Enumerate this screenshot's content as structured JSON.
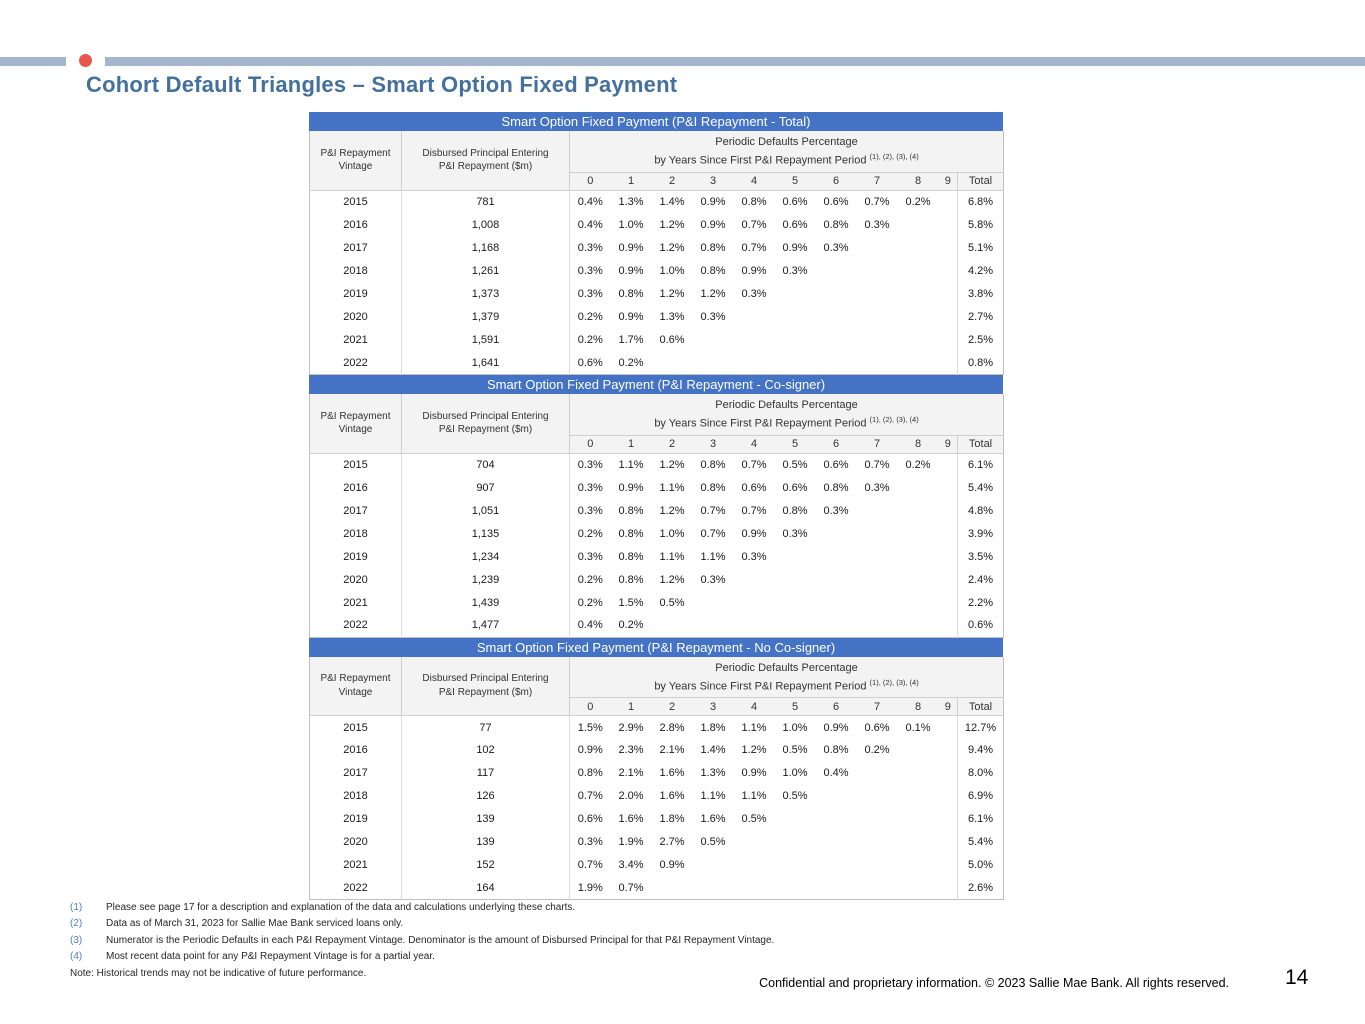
{
  "page": {
    "title": "Cohort Default Triangles – Smart Option Fixed Payment",
    "page_number": "14",
    "footer": "Confidential and proprietary information. © 2023 Sallie Mae Bank. All rights reserved.",
    "note": "Note: Historical trends may not be indicative of future performance.",
    "footnotes": [
      {
        "marker": "(1)",
        "text": "Please see page 17 for a description and explanation of the data and calculations underlying these charts."
      },
      {
        "marker": "(2)",
        "text": "Data as of March 31, 2023 for Sallie Mae Bank serviced loans only."
      },
      {
        "marker": "(3)",
        "text": "Numerator is the Periodic Defaults in each P&I Repayment Vintage. Denominator is the amount of Disbursed Principal for that P&I Repayment Vintage."
      },
      {
        "marker": "(4)",
        "text": "Most recent data point for any P&I Repayment Vintage is for a partial year."
      }
    ]
  },
  "colors": {
    "table_title_bg": "#4472C4",
    "accent_bar": "#A3B6CD",
    "red_dot": "#E8574E",
    "title_text": "#44709D"
  },
  "table_headers": {
    "vintage_line1": "P&I Repayment",
    "vintage_line2": "Vintage",
    "disbursed_line1": "Disbursed Principal Entering",
    "disbursed_line2": "P&I Repayment ($m)",
    "group_line1": "Periodic Defaults Percentage",
    "group_line2": "by Years Since First P&I Repayment Period",
    "group_superscript": "(1), (2), (3), (4)",
    "year_cols": [
      "0",
      "1",
      "2",
      "3",
      "4",
      "5",
      "6",
      "7",
      "8",
      "9"
    ],
    "total_label": "Total"
  },
  "tables": [
    {
      "title": "Smart Option Fixed Payment (P&I Repayment - Total)",
      "rows": [
        {
          "vintage": "2015",
          "disbursed": "781",
          "values": [
            "0.4%",
            "1.3%",
            "1.4%",
            "0.9%",
            "0.8%",
            "0.6%",
            "0.6%",
            "0.7%",
            "0.2%",
            ""
          ],
          "total": "6.8%"
        },
        {
          "vintage": "2016",
          "disbursed": "1,008",
          "values": [
            "0.4%",
            "1.0%",
            "1.2%",
            "0.9%",
            "0.7%",
            "0.6%",
            "0.8%",
            "0.3%",
            "",
            ""
          ],
          "total": "5.8%"
        },
        {
          "vintage": "2017",
          "disbursed": "1,168",
          "values": [
            "0.3%",
            "0.9%",
            "1.2%",
            "0.8%",
            "0.7%",
            "0.9%",
            "0.3%",
            "",
            "",
            ""
          ],
          "total": "5.1%"
        },
        {
          "vintage": "2018",
          "disbursed": "1,261",
          "values": [
            "0.3%",
            "0.9%",
            "1.0%",
            "0.8%",
            "0.9%",
            "0.3%",
            "",
            "",
            "",
            ""
          ],
          "total": "4.2%"
        },
        {
          "vintage": "2019",
          "disbursed": "1,373",
          "values": [
            "0.3%",
            "0.8%",
            "1.2%",
            "1.2%",
            "0.3%",
            "",
            "",
            "",
            "",
            ""
          ],
          "total": "3.8%"
        },
        {
          "vintage": "2020",
          "disbursed": "1,379",
          "values": [
            "0.2%",
            "0.9%",
            "1.3%",
            "0.3%",
            "",
            "",
            "",
            "",
            "",
            ""
          ],
          "total": "2.7%"
        },
        {
          "vintage": "2021",
          "disbursed": "1,591",
          "values": [
            "0.2%",
            "1.7%",
            "0.6%",
            "",
            "",
            "",
            "",
            "",
            "",
            ""
          ],
          "total": "2.5%"
        },
        {
          "vintage": "2022",
          "disbursed": "1,641",
          "values": [
            "0.6%",
            "0.2%",
            "",
            "",
            "",
            "",
            "",
            "",
            "",
            ""
          ],
          "total": "0.8%"
        }
      ]
    },
    {
      "title": "Smart Option Fixed Payment (P&I Repayment - Co-signer)",
      "rows": [
        {
          "vintage": "2015",
          "disbursed": "704",
          "values": [
            "0.3%",
            "1.1%",
            "1.2%",
            "0.8%",
            "0.7%",
            "0.5%",
            "0.6%",
            "0.7%",
            "0.2%",
            ""
          ],
          "total": "6.1%"
        },
        {
          "vintage": "2016",
          "disbursed": "907",
          "values": [
            "0.3%",
            "0.9%",
            "1.1%",
            "0.8%",
            "0.6%",
            "0.6%",
            "0.8%",
            "0.3%",
            "",
            ""
          ],
          "total": "5.4%"
        },
        {
          "vintage": "2017",
          "disbursed": "1,051",
          "values": [
            "0.3%",
            "0.8%",
            "1.2%",
            "0.7%",
            "0.7%",
            "0.8%",
            "0.3%",
            "",
            "",
            ""
          ],
          "total": "4.8%"
        },
        {
          "vintage": "2018",
          "disbursed": "1,135",
          "values": [
            "0.2%",
            "0.8%",
            "1.0%",
            "0.7%",
            "0.9%",
            "0.3%",
            "",
            "",
            "",
            ""
          ],
          "total": "3.9%"
        },
        {
          "vintage": "2019",
          "disbursed": "1,234",
          "values": [
            "0.3%",
            "0.8%",
            "1.1%",
            "1.1%",
            "0.3%",
            "",
            "",
            "",
            "",
            ""
          ],
          "total": "3.5%"
        },
        {
          "vintage": "2020",
          "disbursed": "1,239",
          "values": [
            "0.2%",
            "0.8%",
            "1.2%",
            "0.3%",
            "",
            "",
            "",
            "",
            "",
            ""
          ],
          "total": "2.4%"
        },
        {
          "vintage": "2021",
          "disbursed": "1,439",
          "values": [
            "0.2%",
            "1.5%",
            "0.5%",
            "",
            "",
            "",
            "",
            "",
            "",
            ""
          ],
          "total": "2.2%"
        },
        {
          "vintage": "2022",
          "disbursed": "1,477",
          "values": [
            "0.4%",
            "0.2%",
            "",
            "",
            "",
            "",
            "",
            "",
            "",
            ""
          ],
          "total": "0.6%"
        }
      ]
    },
    {
      "title": "Smart Option Fixed Payment (P&I Repayment - No Co-signer)",
      "rows": [
        {
          "vintage": "2015",
          "disbursed": "77",
          "values": [
            "1.5%",
            "2.9%",
            "2.8%",
            "1.8%",
            "1.1%",
            "1.0%",
            "0.9%",
            "0.6%",
            "0.1%",
            ""
          ],
          "total": "12.7%"
        },
        {
          "vintage": "2016",
          "disbursed": "102",
          "values": [
            "0.9%",
            "2.3%",
            "2.1%",
            "1.4%",
            "1.2%",
            "0.5%",
            "0.8%",
            "0.2%",
            "",
            ""
          ],
          "total": "9.4%"
        },
        {
          "vintage": "2017",
          "disbursed": "117",
          "values": [
            "0.8%",
            "2.1%",
            "1.6%",
            "1.3%",
            "0.9%",
            "1.0%",
            "0.4%",
            "",
            "",
            ""
          ],
          "total": "8.0%"
        },
        {
          "vintage": "2018",
          "disbursed": "126",
          "values": [
            "0.7%",
            "2.0%",
            "1.6%",
            "1.1%",
            "1.1%",
            "0.5%",
            "",
            "",
            "",
            ""
          ],
          "total": "6.9%"
        },
        {
          "vintage": "2019",
          "disbursed": "139",
          "values": [
            "0.6%",
            "1.6%",
            "1.8%",
            "1.6%",
            "0.5%",
            "",
            "",
            "",
            "",
            ""
          ],
          "total": "6.1%"
        },
        {
          "vintage": "2020",
          "disbursed": "139",
          "values": [
            "0.3%",
            "1.9%",
            "2.7%",
            "0.5%",
            "",
            "",
            "",
            "",
            "",
            ""
          ],
          "total": "5.4%"
        },
        {
          "vintage": "2021",
          "disbursed": "152",
          "values": [
            "0.7%",
            "3.4%",
            "0.9%",
            "",
            "",
            "",
            "",
            "",
            "",
            ""
          ],
          "total": "5.0%"
        },
        {
          "vintage": "2022",
          "disbursed": "164",
          "values": [
            "1.9%",
            "0.7%",
            "",
            "",
            "",
            "",
            "",
            "",
            "",
            ""
          ],
          "total": "2.6%"
        }
      ]
    }
  ]
}
